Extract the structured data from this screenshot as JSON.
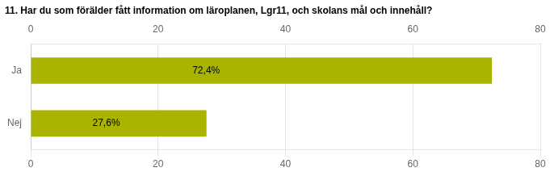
{
  "chart_data": {
    "type": "bar",
    "orientation": "horizontal",
    "title": "11. Har du som förälder fått information om läroplanen, Lgr11, och skolans mål och innehåll?",
    "categories": [
      "Ja",
      "Nej"
    ],
    "values": [
      72.4,
      27.6
    ],
    "value_labels": [
      "72,4%",
      "27,6%"
    ],
    "data_labels": true,
    "color": "#a8b400",
    "xlim": [
      0,
      80
    ],
    "xticks": [
      0,
      20,
      40,
      60,
      80
    ],
    "grid": true
  }
}
